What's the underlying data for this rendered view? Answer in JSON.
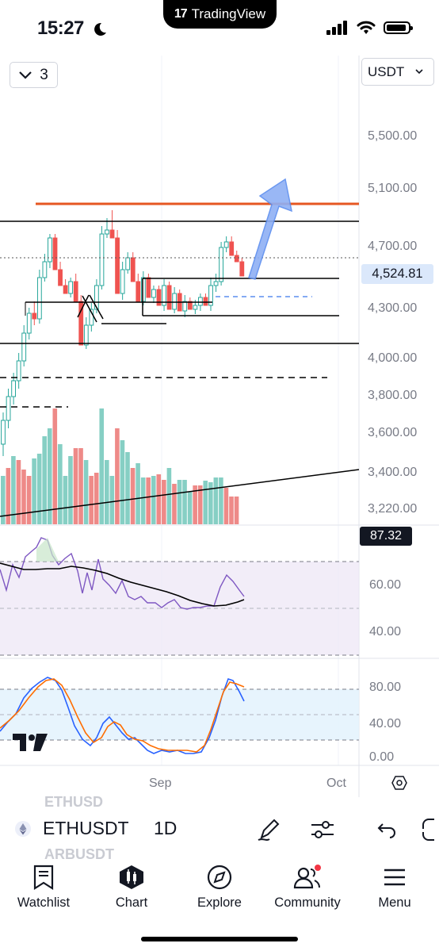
{
  "status_bar": {
    "time": "15:27",
    "island_label": "TradingView"
  },
  "chart": {
    "indicator_count": "3",
    "currency": "USDT",
    "price_axis": [
      "5,500.00",
      "5,100.00",
      "4,700.00",
      "4,300.00",
      "4,000.00",
      "3,800.00",
      "3,600.00",
      "3,400.00",
      "3,220.00"
    ],
    "last_price": "4,524.81",
    "rsi_value": "87.32",
    "rsi_axis": [
      "60.00",
      "40.00"
    ],
    "stoch_axis": [
      "80.00",
      "40.00",
      "0.00"
    ],
    "time_axis": [
      "Sep",
      "Oct"
    ],
    "colors": {
      "up": "#26a69a",
      "down": "#ef5350",
      "resistance": "#e65722",
      "arrow": "#5b8def",
      "rsi_line": "#7e57c2"
    }
  },
  "toolbar": {
    "symbol": "ETHUSDT",
    "interval": "1D",
    "ghost_above": "ETHUSD",
    "ghost_below": "ARBUSDT"
  },
  "tabs": [
    {
      "label": "Watchlist",
      "icon": "bookmark-icon"
    },
    {
      "label": "Chart",
      "icon": "chart-icon"
    },
    {
      "label": "Explore",
      "icon": "compass-icon"
    },
    {
      "label": "Community",
      "icon": "community-icon"
    },
    {
      "label": "Menu",
      "icon": "menu-icon"
    }
  ]
}
